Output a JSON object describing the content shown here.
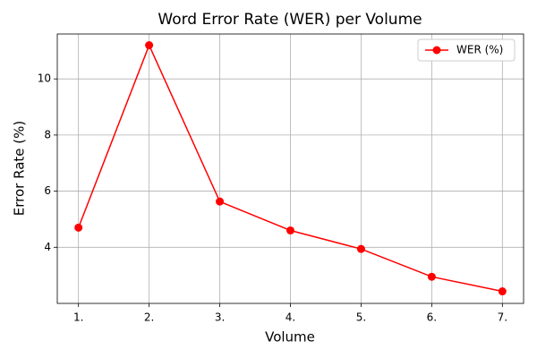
{
  "chart_data": {
    "type": "line",
    "title": "Word Error Rate (WER) per Volume",
    "x_label": "Volume",
    "y_label": "Error Rate (%)",
    "categories": [
      "1.",
      "2.",
      "3.",
      "4.",
      "5.",
      "6.",
      "7."
    ],
    "series": [
      {
        "name": "WER (%)",
        "color": "#ff0000",
        "values": [
          4.7,
          11.2,
          5.63,
          4.6,
          3.94,
          2.95,
          2.43
        ]
      }
    ],
    "ylim": [
      2.0,
      11.6
    ],
    "yticks": [
      4,
      6,
      8,
      10
    ],
    "grid": true,
    "legend": "upper right"
  }
}
